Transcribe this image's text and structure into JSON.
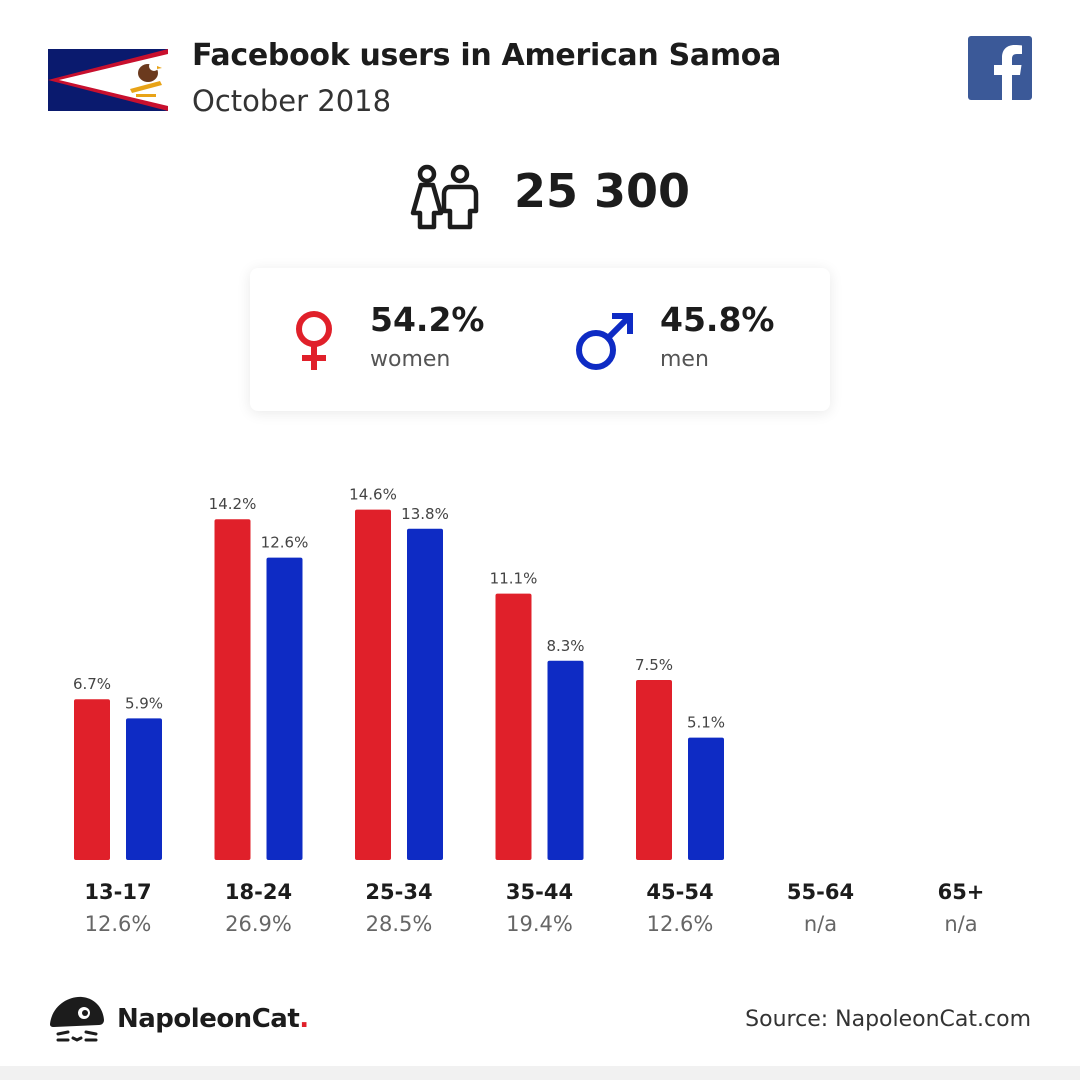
{
  "header": {
    "title": "Facebook users in American Samoa",
    "subtitle": "October 2018"
  },
  "summary": {
    "total_users": "25 300",
    "women_pct": "54.2%",
    "women_label": "women",
    "men_pct": "45.8%",
    "men_label": "men"
  },
  "colors": {
    "women": "#e0202a",
    "men": "#0e2bc4",
    "facebook": "#3b5998",
    "flag_blue": "#0a1a6e",
    "flag_red": "#c8102e"
  },
  "icons": {
    "flag": "american-samoa-flag-icon",
    "facebook": "facebook-logo-icon",
    "users": "users-icon",
    "female": "female-symbol-icon",
    "male": "male-symbol-icon",
    "brand": "napoleoncat-logo-icon"
  },
  "chart_data": {
    "type": "bar",
    "categories": [
      "13-17",
      "18-24",
      "25-34",
      "35-44",
      "45-54",
      "55-64",
      "65+"
    ],
    "series": [
      {
        "name": "women",
        "values": [
          6.7,
          14.2,
          14.6,
          11.1,
          7.5,
          null,
          null
        ],
        "labels": [
          "6.7%",
          "14.2%",
          "14.6%",
          "11.1%",
          "7.5%",
          "",
          ""
        ]
      },
      {
        "name": "men",
        "values": [
          5.9,
          12.6,
          13.8,
          8.3,
          5.1,
          null,
          null
        ],
        "labels": [
          "5.9%",
          "12.6%",
          "13.8%",
          "8.3%",
          "5.1%",
          "",
          ""
        ]
      }
    ],
    "category_totals": [
      "12.6%",
      "26.9%",
      "28.5%",
      "19.4%",
      "12.6%",
      "n/a",
      "n/a"
    ],
    "ylim": [
      0,
      17
    ],
    "grid": false
  },
  "footer": {
    "brand_name": "NapoleonCat",
    "brand_dot": ".",
    "source": "Source: NapoleonCat.com"
  }
}
